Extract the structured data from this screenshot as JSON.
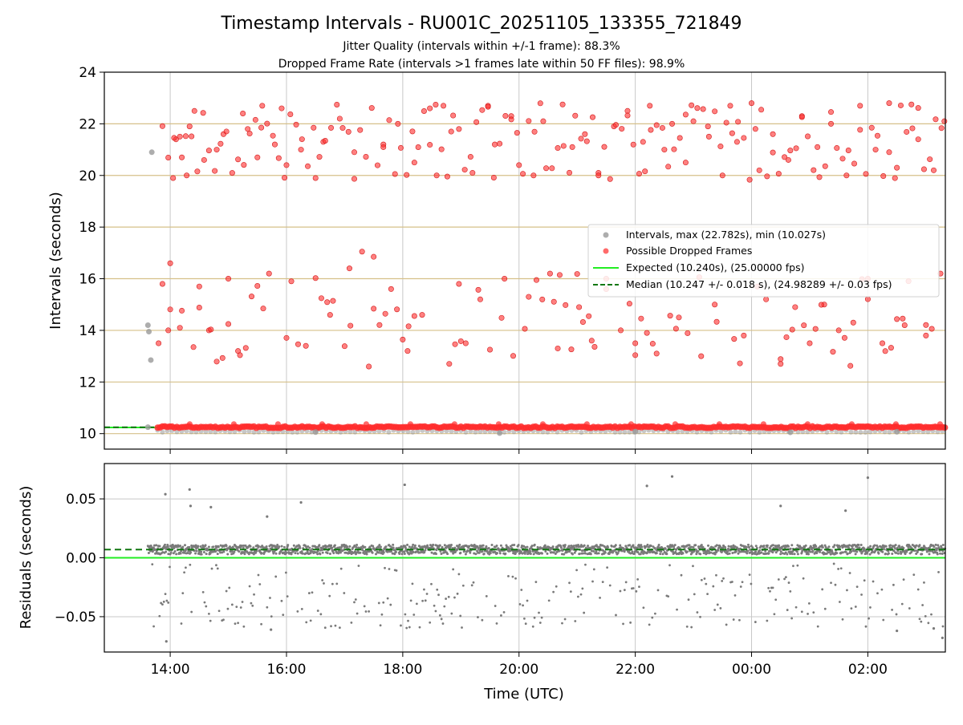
{
  "chart_data": [
    {
      "type": "scatter",
      "title": "Timestamp Intervals - RU001C_20251105_133355_721849",
      "subtitle_lines": [
        "Jitter Quality (intervals within +/-1 frame): 88.3%",
        "Dropped Frame Rate (intervals >1 frames late within 50 FF files): 98.9%"
      ],
      "xlabel": "",
      "ylabel": "Intervals (seconds)",
      "xlim": [
        "2025-11-05 12:52",
        "2025-11-06 03:20"
      ],
      "ylim": [
        9.4,
        24
      ],
      "y_ticks": [
        "10",
        "12",
        "14",
        "16",
        "18",
        "20",
        "22",
        "24"
      ],
      "grid": true,
      "horizontal_guides": [
        10,
        12,
        14,
        16,
        18,
        20,
        22
      ],
      "legend_position": "center-right",
      "legend": [
        "Intervals, max (22.782s), min (10.027s)",
        "Possible Dropped Frames",
        "Expected (10.240s), (25.00000 fps)",
        "Median (10.247 +/- 0.018 s), (24.98289 +/- 0.03 fps)"
      ],
      "expected_interval": 10.24,
      "median_interval": 10.247,
      "colors": {
        "intervals": "#999999",
        "dropped": "#ff2b2b",
        "expected": "#22ee22",
        "median": "#117711",
        "guide": "#d6c089"
      },
      "series": [
        {
          "name": "Intervals, max (22.782s), min (10.027s)",
          "points": [
            [
              "2025-11-05 13:37",
              10.25
            ],
            [
              "2025-11-05 13:37",
              14.2
            ],
            [
              "2025-11-05 13:38",
              13.95
            ],
            [
              "2025-11-05 13:40",
              12.85
            ],
            [
              "2025-11-05 13:41",
              20.9
            ],
            [
              "2025-11-05 16:30",
              10.06
            ],
            [
              "2025-11-05 19:40",
              10.02
            ],
            [
              "2025-11-05 22:00",
              10.08
            ],
            [
              "2025-11-06 00:40",
              10.05
            ],
            [
              "2025-11-06 02:30",
              10.07
            ]
          ]
        },
        {
          "name": "Possible Dropped Frames",
          "points": [
            [
              "2025-11-05 13:48",
              13.5
            ],
            [
              "2025-11-05 13:52",
              15.8
            ],
            [
              "2025-11-05 13:58",
              14.0
            ],
            [
              "2025-11-05 14:00",
              16.6
            ],
            [
              "2025-11-05 14:03",
              19.9
            ],
            [
              "2025-11-05 14:06",
              21.4
            ],
            [
              "2025-11-05 14:10",
              14.1
            ],
            [
              "2025-11-05 14:12",
              20.7
            ],
            [
              "2025-11-05 14:17",
              20.0
            ],
            [
              "2025-11-05 14:20",
              21.9
            ],
            [
              "2025-11-05 14:25",
              22.5
            ],
            [
              "2025-11-05 14:30",
              15.7
            ],
            [
              "2025-11-05 14:35",
              20.6
            ],
            [
              "2025-11-05 14:40",
              14.0
            ],
            [
              "2025-11-05 14:48",
              21.0
            ],
            [
              "2025-11-05 14:55",
              21.6
            ],
            [
              "2025-11-05 15:00",
              16.0
            ],
            [
              "2025-11-05 15:10",
              13.2
            ],
            [
              "2025-11-05 15:15",
              22.4
            ],
            [
              "2025-11-05 15:20",
              21.8
            ],
            [
              "2025-11-05 15:30",
              20.7
            ],
            [
              "2025-11-05 15:35",
              22.7
            ],
            [
              "2025-11-05 15:42",
              16.2
            ],
            [
              "2025-11-05 15:48",
              21.2
            ],
            [
              "2025-11-05 15:55",
              22.6
            ],
            [
              "2025-11-05 16:00",
              20.4
            ],
            [
              "2025-11-05 16:05",
              15.9
            ],
            [
              "2025-11-05 16:15",
              21.0
            ],
            [
              "2025-11-05 16:20",
              13.4
            ],
            [
              "2025-11-05 16:30",
              19.9
            ],
            [
              "2025-11-05 16:38",
              21.3
            ],
            [
              "2025-11-05 16:45",
              14.6
            ],
            [
              "2025-11-05 16:55",
              22.2
            ],
            [
              "2025-11-05 17:05",
              16.4
            ],
            [
              "2025-11-05 17:10",
              20.9
            ],
            [
              "2025-11-05 17:18",
              17.05
            ],
            [
              "2025-11-05 17:25",
              12.6
            ],
            [
              "2025-11-05 17:30",
              16.85
            ],
            [
              "2025-11-05 17:40",
              21.2
            ],
            [
              "2025-11-05 17:48",
              15.6
            ],
            [
              "2025-11-05 17:55",
              22.0
            ],
            [
              "2025-11-05 18:05",
              13.2
            ],
            [
              "2025-11-05 18:12",
              20.5
            ],
            [
              "2025-11-05 18:20",
              14.6
            ],
            [
              "2025-11-05 18:28",
              22.6
            ],
            [
              "2025-11-05 18:35",
              20.0
            ],
            [
              "2025-11-05 18:42",
              22.7
            ],
            [
              "2025-11-05 18:50",
              21.7
            ],
            [
              "2025-11-05 18:58",
              15.8
            ],
            [
              "2025-11-05 19:05",
              13.5
            ],
            [
              "2025-11-05 19:12",
              20.1
            ],
            [
              "2025-11-05 19:20",
              15.2
            ],
            [
              "2025-11-05 19:28",
              22.7
            ],
            [
              "2025-11-05 19:35",
              21.2
            ],
            [
              "2025-11-05 19:45",
              16.0
            ],
            [
              "2025-11-05 19:52",
              22.3
            ],
            [
              "2025-11-05 20:00",
              20.4
            ],
            [
              "2025-11-05 20:10",
              15.3
            ],
            [
              "2025-11-05 20:15",
              20.0
            ],
            [
              "2025-11-05 20:25",
              22.1
            ],
            [
              "2025-11-05 20:32",
              16.2
            ],
            [
              "2025-11-05 20:40",
              13.3
            ],
            [
              "2025-11-05 20:45",
              22.75
            ],
            [
              "2025-11-05 20:55",
              21.1
            ],
            [
              "2025-11-05 21:02",
              14.9
            ],
            [
              "2025-11-05 21:08",
              21.6
            ],
            [
              "2025-11-05 21:15",
              13.6
            ],
            [
              "2025-11-05 21:22",
              20.1
            ],
            [
              "2025-11-05 21:30",
              16.0
            ],
            [
              "2025-11-05 21:38",
              21.9
            ],
            [
              "2025-11-05 21:45",
              14.0
            ],
            [
              "2025-11-05 21:52",
              22.5
            ],
            [
              "2025-11-05 22:00",
              13.5
            ],
            [
              "2025-11-05 22:08",
              21.3
            ],
            [
              "2025-11-05 22:15",
              22.7
            ],
            [
              "2025-11-05 22:22",
              13.1
            ],
            [
              "2025-11-05 22:30",
              21.0
            ],
            [
              "2025-11-05 22:38",
              22.0
            ],
            [
              "2025-11-05 22:45",
              14.5
            ],
            [
              "2025-11-05 22:52",
              20.5
            ],
            [
              "2025-11-05 23:00",
              22.1
            ],
            [
              "2025-11-05 23:08",
              13.0
            ],
            [
              "2025-11-05 23:15",
              21.9
            ],
            [
              "2025-11-05 23:22",
              15.0
            ],
            [
              "2025-11-05 23:30",
              20.0
            ],
            [
              "2025-11-05 23:38",
              22.7
            ],
            [
              "2025-11-05 23:45",
              21.3
            ],
            [
              "2025-11-05 23:52",
              13.8
            ],
            [
              "2025-11-06 00:00",
              22.8
            ],
            [
              "2025-11-06 00:08",
              20.2
            ],
            [
              "2025-11-06 00:15",
              15.2
            ],
            [
              "2025-11-06 00:22",
              21.6
            ],
            [
              "2025-11-06 00:30",
              12.7
            ],
            [
              "2025-11-06 00:38",
              20.6
            ],
            [
              "2025-11-06 00:45",
              14.9
            ],
            [
              "2025-11-06 00:52",
              22.3
            ],
            [
              "2025-11-06 01:00",
              13.5
            ],
            [
              "2025-11-06 01:08",
              21.1
            ],
            [
              "2025-11-06 01:15",
              15.0
            ],
            [
              "2025-11-06 01:22",
              22.0
            ],
            [
              "2025-11-06 01:30",
              14.0
            ],
            [
              "2025-11-06 01:38",
              20.0
            ],
            [
              "2025-11-06 01:45",
              14.3
            ],
            [
              "2025-11-06 01:52",
              22.7
            ],
            [
              "2025-11-06 02:00",
              16.0
            ],
            [
              "2025-11-06 02:08",
              21.0
            ],
            [
              "2025-11-06 02:15",
              13.5
            ],
            [
              "2025-11-06 02:22",
              22.8
            ],
            [
              "2025-11-06 02:30",
              20.3
            ],
            [
              "2025-11-06 02:38",
              14.2
            ],
            [
              "2025-11-06 02:45",
              22.75
            ],
            [
              "2025-11-06 02:52",
              21.4
            ],
            [
              "2025-11-06 03:00",
              13.8
            ],
            [
              "2025-11-06 03:08",
              20.2
            ],
            [
              "2025-11-06 03:15",
              16.2
            ],
            [
              "2025-11-06 03:19",
              22.1
            ]
          ]
        }
      ],
      "normal_band": {
        "x_range": [
          "2025-11-05 13:47",
          "2025-11-06 03:20"
        ],
        "y": 10.25
      }
    },
    {
      "type": "scatter",
      "title": "",
      "xlabel": "Time (UTC)",
      "ylabel": "Residuals (seconds)",
      "xlim": [
        "2025-11-05 12:52",
        "2025-11-06 03:20"
      ],
      "ylim": [
        -0.08,
        0.08
      ],
      "x_ticks": [
        "14:00",
        "16:00",
        "18:00",
        "20:00",
        "22:00",
        "00:00",
        "02:00"
      ],
      "y_ticks": [
        "−0.05",
        "0.00",
        "0.05"
      ],
      "grid": true,
      "expected_residual": 0.0,
      "median_residual": 0.007,
      "colors": {
        "residual": "#7a7a7a",
        "expected": "#22ee22",
        "median": "#117711"
      },
      "dense_band": {
        "x_range": [
          "2025-11-05 13:37",
          "2025-11-06 03:20"
        ],
        "center": 0.007,
        "spread": 0.004
      },
      "outliers": [
        [
          "2025-11-05 13:55",
          0.054
        ],
        [
          "2025-11-05 13:56",
          -0.071
        ],
        [
          "2025-11-05 14:20",
          0.058
        ],
        [
          "2025-11-05 14:21",
          0.044
        ],
        [
          "2025-11-05 14:42",
          0.043
        ],
        [
          "2025-11-05 15:40",
          0.035
        ],
        [
          "2025-11-05 15:44",
          -0.061
        ],
        [
          "2025-11-05 16:15",
          0.047
        ],
        [
          "2025-11-05 18:02",
          0.062
        ],
        [
          "2025-11-05 22:12",
          0.061
        ],
        [
          "2025-11-05 22:38",
          0.069
        ],
        [
          "2025-11-06 00:30",
          0.044
        ],
        [
          "2025-11-06 01:37",
          0.04
        ],
        [
          "2025-11-06 02:00",
          0.068
        ],
        [
          "2025-11-06 02:30",
          -0.062
        ],
        [
          "2025-11-06 03:17",
          -0.068
        ],
        [
          "2025-11-06 03:08",
          -0.06
        ]
      ]
    }
  ]
}
